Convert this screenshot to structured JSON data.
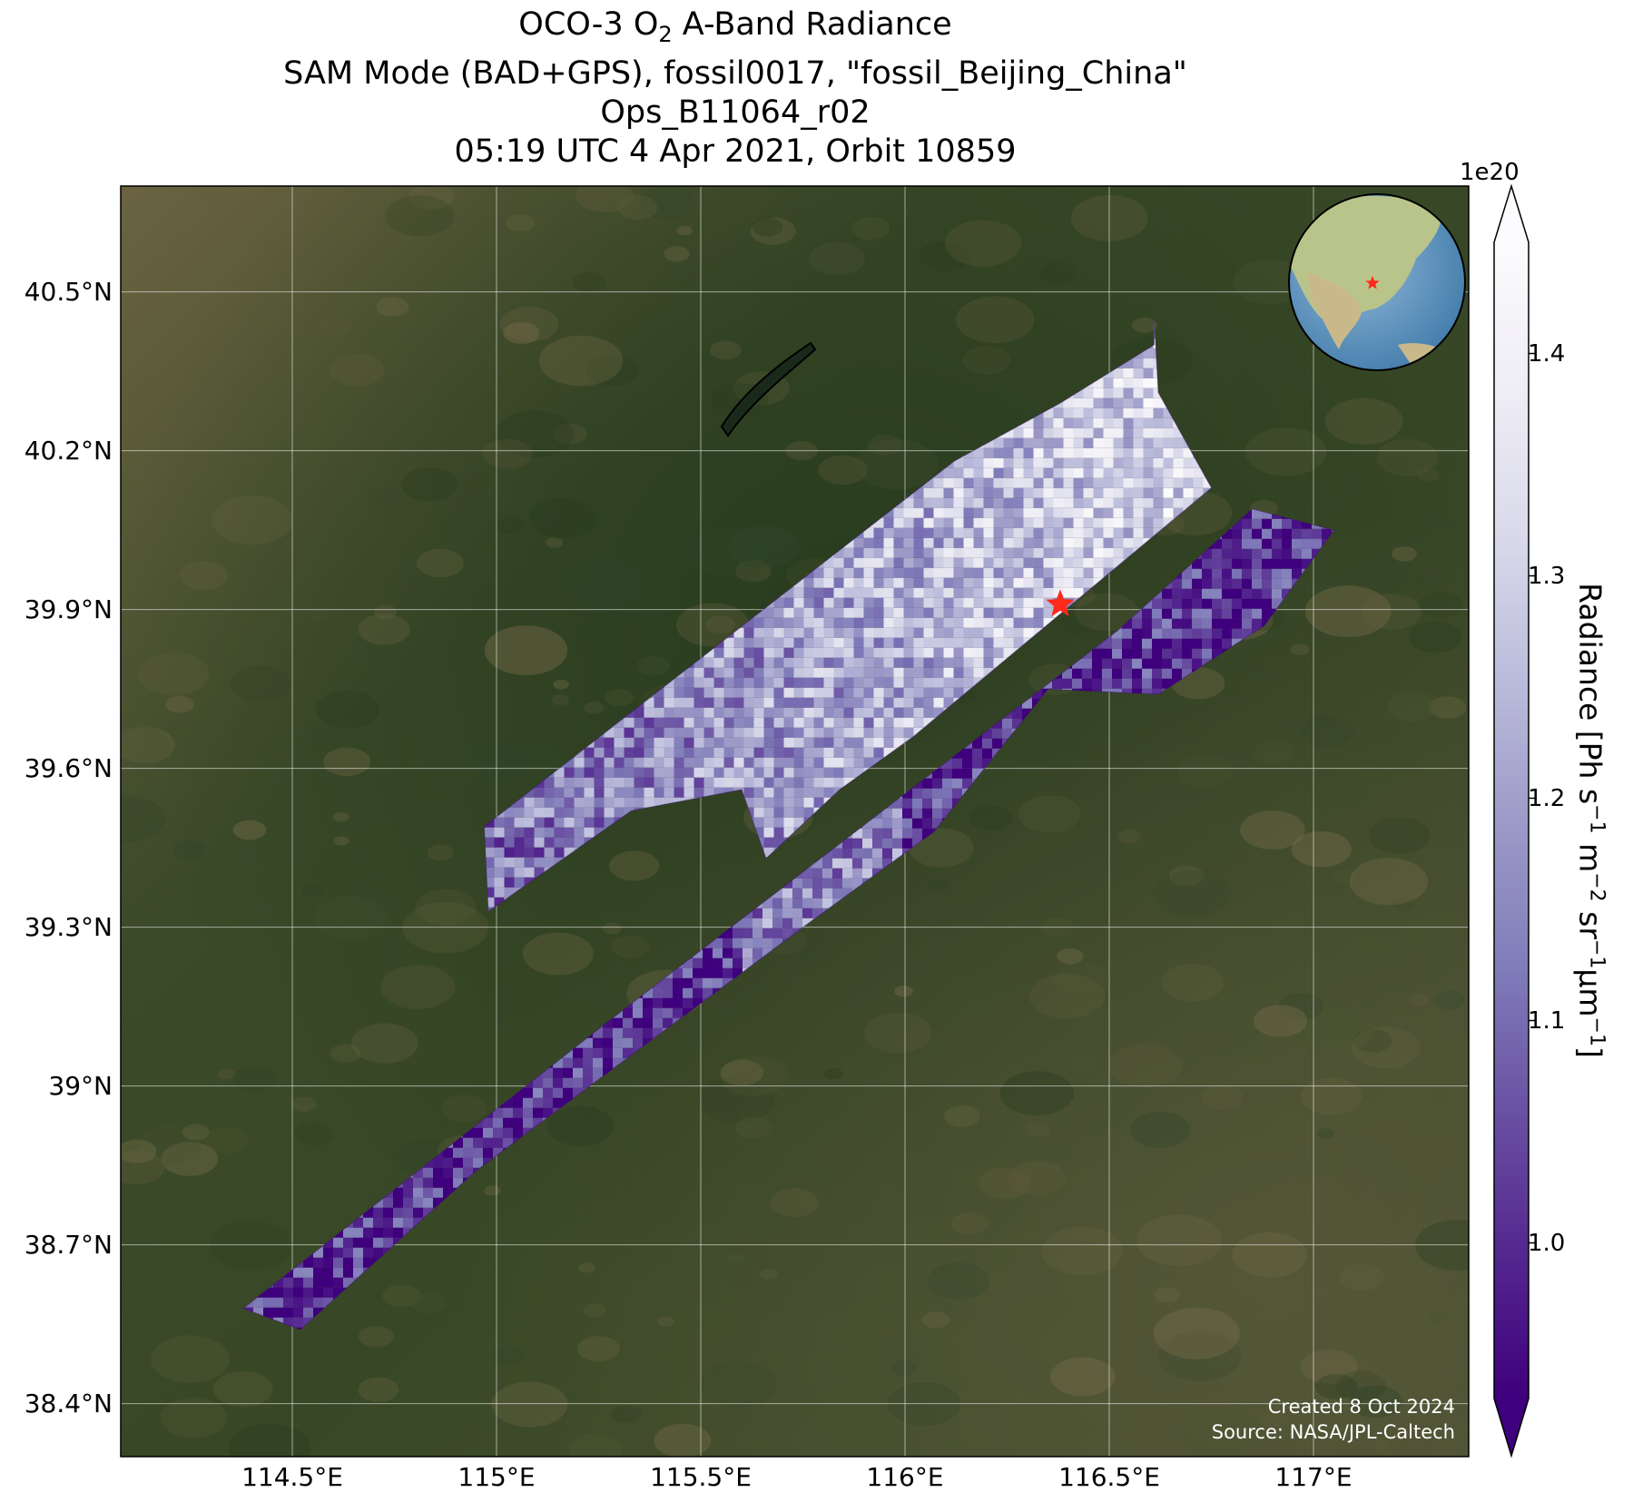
{
  "title": {
    "line1_prefix": "OCO-3 O",
    "line1_sub": "2",
    "line1_suffix": " A-Band Radiance",
    "line2": "SAM Mode (BAD+GPS), fossil0017, \"fossil_Beijing_China\"",
    "line3": "Ops_B11064_r02",
    "line4": "05:19 UTC 4 Apr 2021, Orbit 10859"
  },
  "map": {
    "lon_range": [
      114.08,
      117.38
    ],
    "lat_range": [
      38.3,
      40.7
    ],
    "lat_ticks": [
      "40.5°N",
      "40.2°N",
      "39.9°N",
      "39.6°N",
      "39.3°N",
      "39°N",
      "38.7°N",
      "38.4°N"
    ],
    "lon_ticks": [
      "114.5°E",
      "115°E",
      "115.5°E",
      "116°E",
      "116.5°E",
      "117°E"
    ],
    "lat_tick_values": [
      40.5,
      40.2,
      39.9,
      39.6,
      39.3,
      39.0,
      38.7,
      38.4
    ],
    "lon_tick_values": [
      114.5,
      115.0,
      115.5,
      116.0,
      116.5,
      117.0
    ],
    "target": {
      "lon": 116.38,
      "lat": 39.91,
      "marker": "red-star"
    },
    "inset_globe": {
      "marker": "red-star",
      "region": "East Asia"
    },
    "background": "satellite-imagery",
    "colors": {
      "terrain_dark": "#2f4022",
      "terrain_light": "#6b6340",
      "target": "#ff2a1a"
    }
  },
  "colorbar": {
    "exponent": "1e20",
    "ticks": [
      "1.0",
      "1.1",
      "1.2",
      "1.3",
      "1.4"
    ],
    "tick_values": [
      1.0,
      1.1,
      1.2,
      1.3,
      1.4
    ],
    "range": [
      0.93,
      1.45
    ],
    "label_prefix": "Radiance [Ph s",
    "label_exponents": [
      "−1",
      "−2",
      "−1",
      "−1"
    ],
    "label_units": [
      " m",
      " sr",
      "μm",
      "]"
    ],
    "colormap": [
      "#3f007d",
      "#54278f",
      "#6a51a3",
      "#807dba",
      "#9e9ac8",
      "#bcbddc",
      "#dadaeb",
      "#efedf5",
      "#fcfbfd"
    ],
    "extend": "both"
  },
  "chart_data": {
    "type": "heatmap",
    "title": "OCO-3 O2 A-Band Radiance",
    "xlabel": "",
    "ylabel": "",
    "xlim": [
      114.08,
      117.38
    ],
    "ylim": [
      38.3,
      40.7
    ],
    "units": "Ph s-1 m-2 sr-1 μm-1 (×1e20)",
    "swaths": [
      {
        "corners": [
          [
            114.97,
            39.49
          ],
          [
            116.12,
            40.18
          ],
          [
            116.38,
            40.29
          ],
          [
            116.61,
            40.4
          ],
          [
            116.61,
            40.45
          ],
          [
            116.62,
            40.31
          ],
          [
            116.75,
            40.13
          ],
          [
            116.02,
            39.66
          ],
          [
            115.84,
            39.56
          ],
          [
            115.66,
            39.43
          ],
          [
            115.6,
            39.56
          ],
          [
            115.33,
            39.52
          ],
          [
            114.98,
            39.33
          ]
        ],
        "approx_mean": 1.22
      },
      {
        "corners": [
          [
            114.38,
            38.58
          ],
          [
            115.27,
            39.12
          ],
          [
            116.52,
            39.86
          ],
          [
            116.85,
            40.09
          ],
          [
            117.05,
            40.05
          ],
          [
            116.88,
            39.87
          ],
          [
            116.62,
            39.74
          ],
          [
            116.35,
            39.75
          ],
          [
            116.07,
            39.48
          ],
          [
            115.75,
            39.3
          ],
          [
            114.95,
            38.84
          ],
          [
            114.52,
            38.54
          ]
        ],
        "approx_mean": 1.03
      }
    ]
  },
  "credit": {
    "created": "Created 8 Oct 2024",
    "source": "Source: NASA/JPL-Caltech"
  }
}
